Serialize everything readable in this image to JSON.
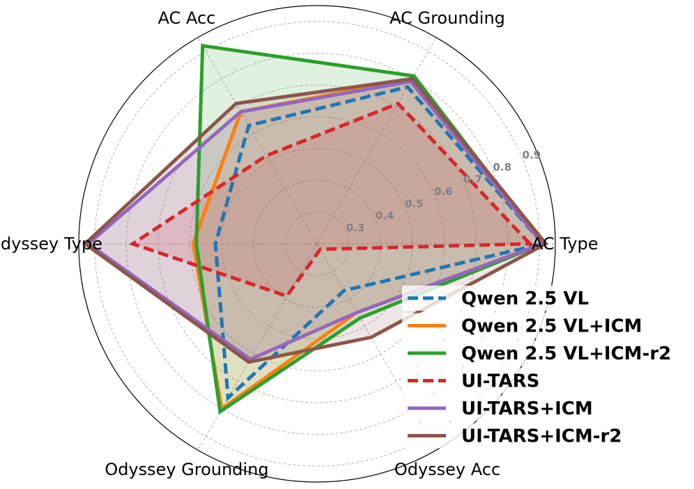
{
  "chart_data": {
    "type": "radar",
    "categories": [
      "AC Type",
      "AC Grounding",
      "AC Acc",
      "Odyssey Type",
      "Odyssey Grounding",
      "Odyssey Acc"
    ],
    "radial_ticks": [
      "0.3",
      "0.4",
      "0.5",
      "0.6",
      "0.7",
      "0.8",
      "0.9"
    ],
    "rlim": [
      0.2,
      0.95
    ],
    "grid": true,
    "legend_position": "bottom-right",
    "series": [
      {
        "name": "Qwen 2.5 VL",
        "values": [
          0.91,
          0.77,
          0.63,
          0.52,
          0.76,
          0.37
        ],
        "color": "#1f77b4",
        "dash": true,
        "fill": false
      },
      {
        "name": "Qwen 2.5 VL+ICM",
        "values": [
          0.91,
          0.8,
          0.68,
          0.59,
          0.8,
          0.45
        ],
        "color": "#ff7f0e",
        "dash": false,
        "fill": true
      },
      {
        "name": "Qwen 2.5 VL+ICM-r2",
        "values": [
          0.91,
          0.81,
          0.92,
          0.58,
          0.81,
          0.47
        ],
        "color": "#2ca02c",
        "dash": false,
        "fill": true
      },
      {
        "name": "UI-TARS",
        "values": [
          0.87,
          0.71,
          0.52,
          0.78,
          0.39,
          0.22
        ],
        "color": "#d62728",
        "dash": true,
        "fill": true
      },
      {
        "name": "UI-TARS+ICM",
        "values": [
          0.91,
          0.79,
          0.68,
          0.92,
          0.62,
          0.45
        ],
        "color": "#9467bd",
        "dash": false,
        "fill": true
      },
      {
        "name": "UI-TARS+ICM-r2",
        "values": [
          0.92,
          0.8,
          0.71,
          0.93,
          0.63,
          0.54
        ],
        "color": "#8c564b",
        "dash": false,
        "fill": true
      }
    ]
  }
}
